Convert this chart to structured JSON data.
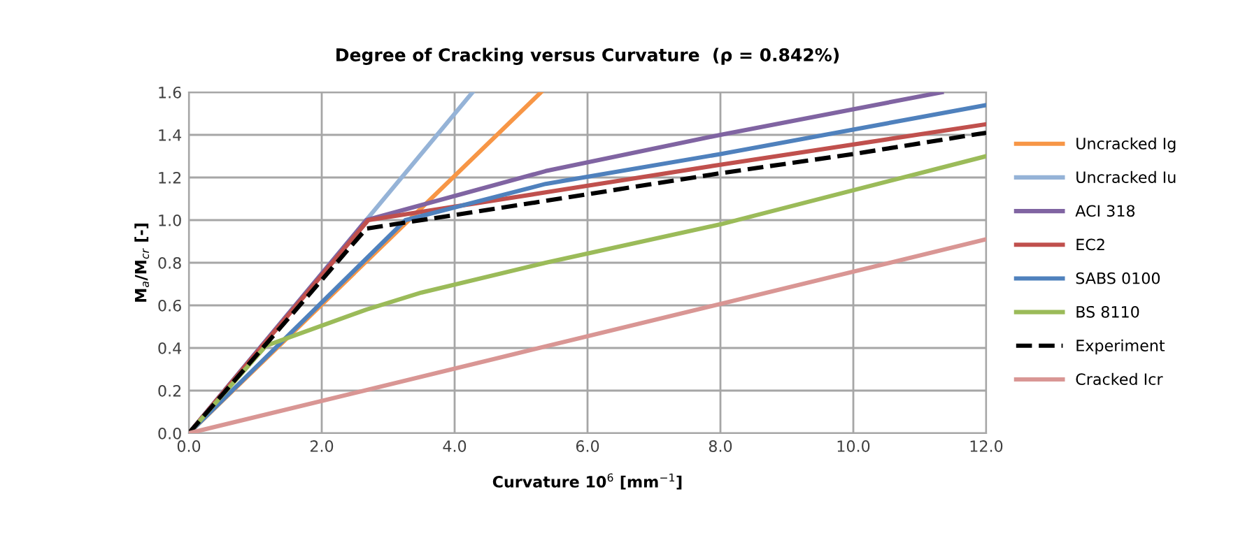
{
  "chart_data": {
    "type": "line",
    "title": "Degree of Cracking versus Curvature  (ρ = 0.842%)",
    "xlabel": "Curvature 10$^{6}$ [mm$^{−1}$]",
    "ylabel": "M$_{a}$/M$_{cr}$ [-]",
    "xlim": [
      0,
      12
    ],
    "ylim": [
      0,
      1.6
    ],
    "xticks": [
      {
        "value": 0,
        "label": "0.0"
      },
      {
        "value": 2,
        "label": "2.0"
      },
      {
        "value": 4,
        "label": "4.0"
      },
      {
        "value": 6,
        "label": "6.0"
      },
      {
        "value": 8,
        "label": "8.0"
      },
      {
        "value": 10,
        "label": "10.0"
      },
      {
        "value": 12,
        "label": "12.0"
      }
    ],
    "yticks": [
      {
        "value": 0,
        "label": "0.0"
      },
      {
        "value": 0.2,
        "label": "0.2"
      },
      {
        "value": 0.4,
        "label": "0.4"
      },
      {
        "value": 0.6,
        "label": "0.6"
      },
      {
        "value": 0.8,
        "label": "0.8"
      },
      {
        "value": 1,
        "label": "1.0"
      },
      {
        "value": 1.2,
        "label": "1.2"
      },
      {
        "value": 1.4,
        "label": "1.4"
      },
      {
        "value": 1.6,
        "label": "1.6"
      }
    ],
    "grid": true,
    "legend": "right",
    "marker": "none",
    "series": [
      {
        "name": "Uncracked Ig",
        "color": "#f79646",
        "x": [
          0,
          5.3
        ],
        "values": [
          0,
          1.6
        ]
      },
      {
        "name": "Uncracked Iu",
        "color": "#95b3d7",
        "x": [
          0,
          4.27
        ],
        "values": [
          0,
          1.6
        ]
      },
      {
        "name": "ACI 318",
        "color": "#8064a2",
        "x": [
          0,
          2.67,
          5.37,
          8,
          11.33
        ],
        "values": [
          0,
          1.0,
          1.23,
          1.4,
          1.6
        ]
      },
      {
        "name": "EC2",
        "color": "#c0504d",
        "x": [
          0,
          2.7,
          5.37,
          8,
          12
        ],
        "values": [
          0,
          1.0,
          1.13,
          1.26,
          1.45
        ]
      },
      {
        "name": "SABS 0100",
        "color": "#4f81bd",
        "x": [
          0,
          3.26,
          5.37,
          8,
          12
        ],
        "values": [
          0,
          1.0,
          1.17,
          1.31,
          1.54
        ]
      },
      {
        "name": "BS 8110",
        "color": "#9bbb59",
        "x": [
          0,
          1.16,
          2.67,
          3.5,
          5.37,
          8,
          12
        ],
        "values": [
          0,
          0.41,
          0.58,
          0.66,
          0.8,
          0.98,
          1.3
        ]
      },
      {
        "name": "Experiment",
        "color": "#000000",
        "line_style": "dashed",
        "x": [
          0,
          2.67,
          5.16,
          8,
          10,
          12
        ],
        "values": [
          0,
          0.96,
          1.08,
          1.22,
          1.31,
          1.41
        ]
      },
      {
        "name": "Cracked Icr",
        "color": "#d99694",
        "x": [
          0,
          12
        ],
        "values": [
          0,
          0.91
        ]
      }
    ]
  }
}
